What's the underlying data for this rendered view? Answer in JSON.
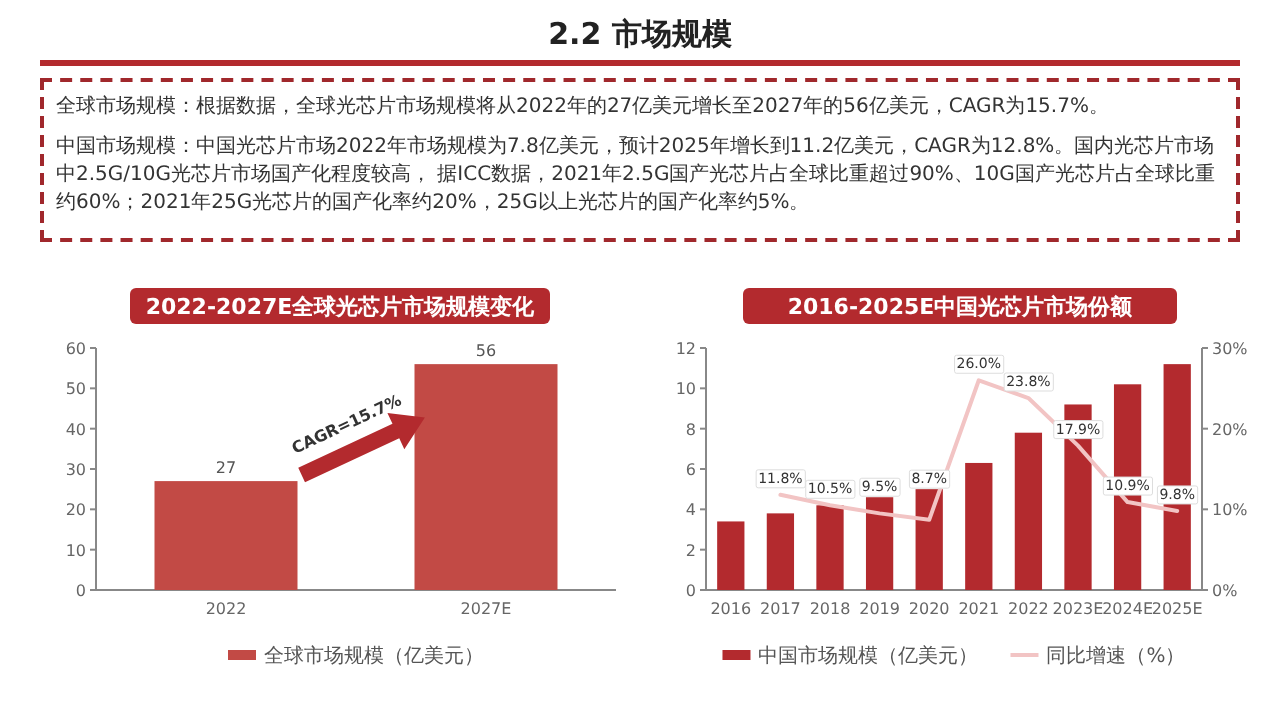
{
  "chart_data": [
    {
      "type": "other",
      "title": "2.2 市场规模",
      "annotations": [
        "全球市场规模：根据数据，全球光芯片市场规模将从2022年的27亿美元增长至2027年的56亿美元，CAGR为15.7%。",
        "中国市场规模：中国光芯片市场2022年市场规模为7.8亿美元，预计2025年增长到11.2亿美元，CAGR为12.8%。国内光芯片市场中2.5G/10G光芯片市场国产化程度较高， 据ICC数据，2021年2.5G国产光芯片占全球比重超过90%、10G国产光芯片占全球比重约60%；2021年25G光芯片的国产化率约20%，25G以上光芯片的国产化率约5%。"
      ]
    },
    {
      "type": "bar",
      "title": "2022-2027E全球光芯片市场规模变化",
      "categories": [
        "2022",
        "2027E"
      ],
      "series": [
        {
          "name": "全球市场规模（亿美元）",
          "color": "#c24a45",
          "values": [
            27,
            56
          ]
        }
      ],
      "ylim": [
        0,
        60
      ],
      "yticks": [
        0,
        10,
        20,
        30,
        40,
        50,
        60
      ],
      "data_labels": true,
      "legend": "bottom",
      "annotations": [
        "CAGR=15.7%"
      ]
    },
    {
      "type": "bar",
      "title": "2016-2025E中国光芯片市场份额",
      "categories": [
        "2016",
        "2017",
        "2018",
        "2019",
        "2020",
        "2021",
        "2022",
        "2023E",
        "2024E",
        "2025E"
      ],
      "series": [
        {
          "name": "中国市场规模（亿美元）",
          "color": "#b32a2e",
          "values": [
            3.4,
            3.8,
            4.2,
            4.6,
            5.0,
            6.3,
            7.8,
            9.2,
            10.2,
            11.2
          ]
        },
        {
          "name": "同比增速（%）",
          "type": "line",
          "axis": "y2",
          "color": "#f2c4c4",
          "values": [
            null,
            11.8,
            10.5,
            9.5,
            8.7,
            26.0,
            23.8,
            17.9,
            10.9,
            9.8
          ],
          "value_labels": [
            null,
            "11.8%",
            "10.5%",
            "9.5%",
            "8.7%",
            "26.0%",
            "23.8%",
            "17.9%",
            "10.9%",
            "9.8%"
          ]
        }
      ],
      "ylim": [
        0,
        12
      ],
      "yticks": [
        0,
        2,
        4,
        6,
        8,
        10,
        12
      ],
      "y2lim": [
        0,
        30
      ],
      "y2ticks": [
        {
          "value": 0,
          "label": "0%"
        },
        {
          "value": 10,
          "label": "10%"
        },
        {
          "value": 20,
          "label": "20%"
        },
        {
          "value": 30,
          "label": "30%"
        }
      ],
      "legend": "bottom"
    }
  ]
}
